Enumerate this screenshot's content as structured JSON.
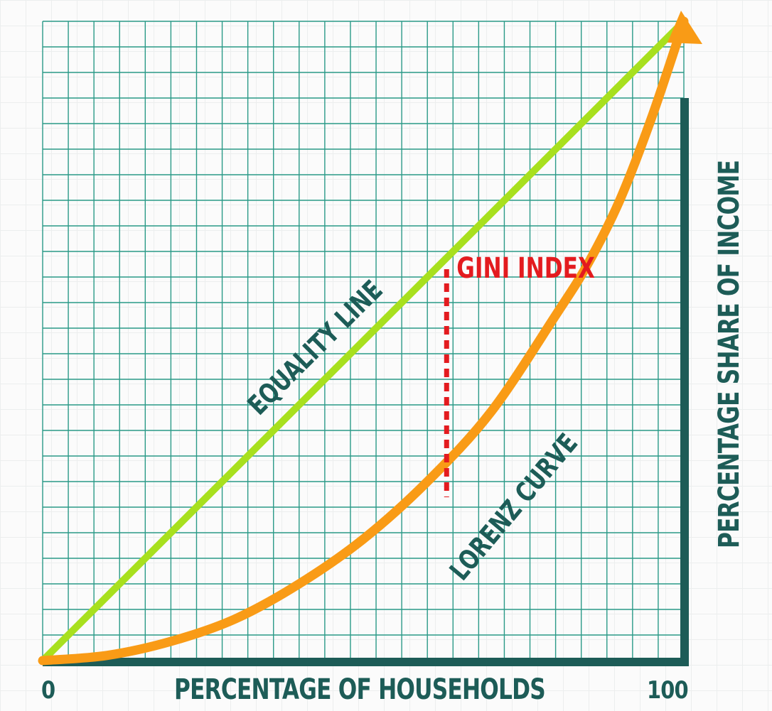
{
  "chart_data": {
    "type": "line",
    "title": "",
    "xlabel": "PERCENTAGE OF HOUSEHOLDS",
    "ylabel": "PERCENTAGE SHARE OF INCOME",
    "xlim": [
      0,
      100
    ],
    "ylim": [
      0,
      100
    ],
    "x_tick_labels": [
      "0",
      "100"
    ],
    "grid": true,
    "series": [
      {
        "name": "EQUALITY LINE",
        "color": "#a8e01e",
        "x": [
          0,
          100
        ],
        "y": [
          0,
          100
        ]
      },
      {
        "name": "LORENZ CURVE",
        "color": "#f99b16",
        "x": [
          0,
          10,
          20,
          30,
          40,
          50,
          60,
          70,
          80,
          85,
          90,
          95,
          100
        ],
        "y": [
          0,
          0.8,
          3,
          6.5,
          12,
          19,
          28,
          39,
          54,
          62,
          72,
          85,
          100
        ]
      }
    ],
    "annotations": [
      {
        "text": "GINI INDEX",
        "color": "#e31b1f",
        "marker": "dashed-vertical-gap",
        "x": 63,
        "y_top": 63,
        "y_bottom": 26
      }
    ],
    "colors": {
      "grid": "#2b9a88",
      "axis": "#1d5c57",
      "label": "#1d5c57",
      "arrow": "#f99b16"
    }
  }
}
